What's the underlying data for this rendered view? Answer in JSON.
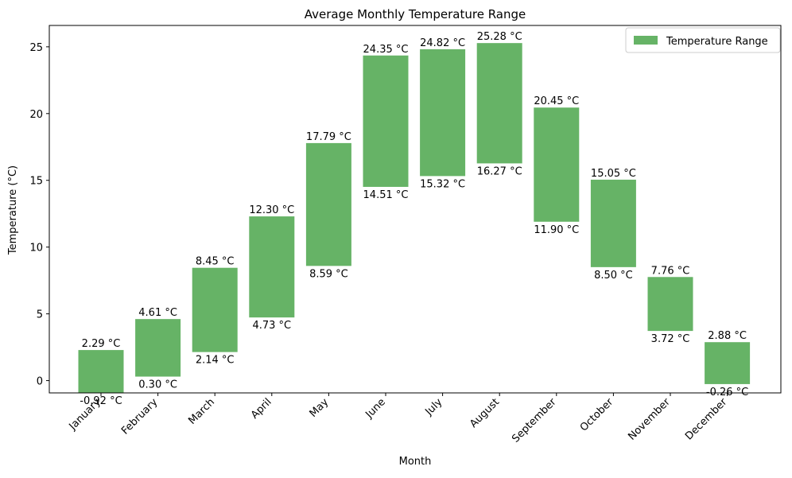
{
  "chart_data": {
    "type": "bar",
    "title": "Average Monthly Temperature Range",
    "xlabel": "Month",
    "ylabel": "Temperature (°C)",
    "categories": [
      "January",
      "February",
      "March",
      "April",
      "May",
      "June",
      "July",
      "August",
      "September",
      "October",
      "November",
      "December"
    ],
    "series": [
      {
        "name": "Temperature Range",
        "low": [
          -0.92,
          0.3,
          2.14,
          4.73,
          8.59,
          14.51,
          15.32,
          16.27,
          11.9,
          8.5,
          3.72,
          -0.26
        ],
        "high": [
          2.29,
          4.61,
          8.45,
          12.3,
          17.79,
          24.35,
          24.82,
          25.28,
          20.45,
          15.05,
          7.76,
          2.88
        ],
        "low_labels": [
          "-0.92 °C",
          "0.30 °C",
          "2.14 °C",
          "4.73 °C",
          "8.59 °C",
          "14.51 °C",
          "15.32 °C",
          "16.27 °C",
          "11.90 °C",
          "8.50 °C",
          "3.72 °C",
          "-0.26 °C"
        ],
        "high_labels": [
          "2.29 °C",
          "4.61 °C",
          "8.45 °C",
          "12.30 °C",
          "17.79 °C",
          "24.35 °C",
          "24.82 °C",
          "25.28 °C",
          "20.45 °C",
          "15.05 °C",
          "7.76 °C",
          "2.88 °C"
        ]
      }
    ],
    "ylim": [
      -0.92,
      26.6
    ],
    "yticks": [
      0,
      5,
      10,
      15,
      20,
      25
    ],
    "ytick_labels": [
      "0",
      "5",
      "10",
      "15",
      "20",
      "25"
    ],
    "grid": false,
    "legend": "top-right",
    "bar_color": "#66b366"
  }
}
